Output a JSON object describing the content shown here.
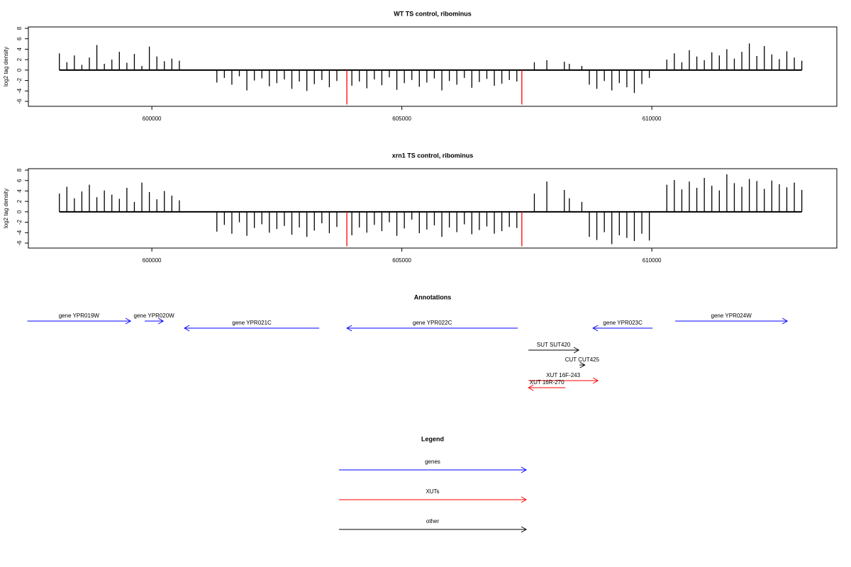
{
  "chart_data": [
    {
      "type": "bar",
      "title": "WT TS control, ribominus",
      "ylabel": "log2 tag density",
      "xlim": [
        597530,
        613700
      ],
      "xticks": [
        600000,
        605000,
        610000
      ],
      "ylim": [
        -6.95,
        8.27
      ],
      "yticks": [
        -6,
        -4,
        -2,
        0,
        2,
        4,
        6,
        8
      ],
      "series": [
        {
          "color": "#000000",
          "x": [
            598150,
            598300,
            598450,
            598600,
            598750,
            598900,
            599050,
            599200,
            599350,
            599500,
            599650,
            599800,
            599950,
            600100,
            600250,
            600400,
            600550,
            601300,
            601450,
            601600,
            601750,
            601900,
            602050,
            602200,
            602350,
            602500,
            602650,
            602800,
            602950,
            603100,
            603250,
            603400,
            603550,
            603700,
            604000,
            604150,
            604300,
            604450,
            604600,
            604750,
            604900,
            605050,
            605200,
            605350,
            605500,
            605650,
            605800,
            605950,
            606100,
            606250,
            606400,
            606550,
            606700,
            606850,
            607000,
            607150,
            607300,
            607650,
            607900,
            608250,
            608350,
            608600,
            608750,
            608900,
            609050,
            609200,
            609350,
            609500,
            609650,
            609800,
            609950,
            610300,
            610450,
            610600,
            610750,
            610900,
            611050,
            611200,
            611350,
            611500,
            611650,
            611800,
            611950,
            612100,
            612250,
            612400,
            612550,
            612700,
            612850,
            613000
          ],
          "values": [
            3.2,
            1.5,
            2.8,
            1.0,
            2.4,
            4.8,
            1.2,
            2.0,
            3.5,
            1.4,
            3.1,
            0.8,
            4.5,
            2.6,
            1.7,
            2.2,
            1.8,
            -2.4,
            -1.5,
            -2.8,
            -1.2,
            -3.9,
            -2.0,
            -1.6,
            -3.1,
            -2.5,
            -1.8,
            -3.6,
            -2.2,
            -4.0,
            -2.7,
            -1.9,
            -3.3,
            -2.1,
            -3.0,
            -2.2,
            -3.5,
            -1.8,
            -2.9,
            -1.4,
            -3.8,
            -2.5,
            -1.9,
            -3.2,
            -2.4,
            -1.6,
            -3.9,
            -2.1,
            -2.8,
            -1.5,
            -3.4,
            -2.3,
            -1.7,
            -3.0,
            -2.6,
            -1.9,
            -2.2,
            1.5,
            1.9,
            1.6,
            1.2,
            0.8,
            -2.8,
            -3.6,
            -2.1,
            -3.9,
            -2.5,
            -3.3,
            -4.4,
            -2.7,
            -1.5,
            2.0,
            3.2,
            1.5,
            3.8,
            2.6,
            1.9,
            3.4,
            2.8,
            4.0,
            2.2,
            3.5,
            5.1,
            2.7,
            4.6,
            3.0,
            2.1,
            3.6,
            2.4,
            1.8
          ]
        },
        {
          "color": "#ff0000",
          "x": [
            603900,
            607400
          ],
          "values": [
            -6.6,
            -6.6
          ]
        }
      ]
    },
    {
      "type": "bar",
      "title": "xrn1 TS control, ribominus",
      "ylabel": "log2 tag density",
      "xlim": [
        597530,
        613700
      ],
      "xticks": [
        600000,
        605000,
        610000
      ],
      "ylim": [
        -6.95,
        8.27
      ],
      "yticks": [
        -6,
        -4,
        -2,
        0,
        2,
        4,
        6,
        8
      ],
      "series": [
        {
          "color": "#000000",
          "x": [
            598150,
            598300,
            598450,
            598600,
            598750,
            598900,
            599050,
            599200,
            599350,
            599500,
            599650,
            599800,
            599950,
            600100,
            600250,
            600400,
            600550,
            601300,
            601450,
            601600,
            601750,
            601900,
            602050,
            602200,
            602350,
            602500,
            602650,
            602800,
            602950,
            603100,
            603250,
            603400,
            603550,
            603700,
            604000,
            604150,
            604300,
            604450,
            604600,
            604750,
            604900,
            605050,
            605200,
            605350,
            605500,
            605650,
            605800,
            605950,
            606100,
            606250,
            606400,
            606550,
            606700,
            606850,
            607000,
            607150,
            607300,
            607650,
            607900,
            608250,
            608350,
            608600,
            608750,
            608900,
            609050,
            609200,
            609350,
            609500,
            609650,
            609800,
            609950,
            610300,
            610450,
            610600,
            610750,
            610900,
            611050,
            611200,
            611350,
            611500,
            611650,
            611800,
            611950,
            612100,
            612250,
            612400,
            612550,
            612700,
            612850,
            613000
          ],
          "values": [
            3.5,
            4.8,
            2.6,
            3.9,
            5.2,
            2.8,
            4.1,
            3.3,
            2.5,
            4.6,
            1.9,
            5.6,
            3.8,
            2.4,
            4.0,
            3.1,
            2.2,
            -3.8,
            -2.5,
            -4.2,
            -2.0,
            -4.6,
            -3.1,
            -2.4,
            -4.0,
            -3.3,
            -2.7,
            -4.4,
            -3.0,
            -4.8,
            -3.6,
            -2.2,
            -4.1,
            -2.9,
            -4.5,
            -3.0,
            -4.0,
            -2.5,
            -3.7,
            -2.0,
            -4.6,
            -3.2,
            -1.5,
            -4.1,
            -3.4,
            -2.6,
            -4.8,
            -3.0,
            -3.9,
            -2.4,
            -4.3,
            -3.5,
            -2.8,
            -4.2,
            -3.7,
            -2.9,
            -3.1,
            3.5,
            5.8,
            4.2,
            2.6,
            1.9,
            -4.8,
            -5.4,
            -3.9,
            -6.2,
            -4.5,
            -5.0,
            -5.6,
            -4.2,
            -5.5,
            5.2,
            6.1,
            4.3,
            5.8,
            4.6,
            6.5,
            5.0,
            4.1,
            7.2,
            5.5,
            4.8,
            6.3,
            5.9,
            4.4,
            6.0,
            5.3,
            4.7,
            5.6,
            4.2
          ]
        },
        {
          "color": "#ff0000",
          "x": [
            603900,
            607400
          ],
          "values": [
            -6.6,
            -6.6
          ]
        }
      ]
    }
  ],
  "annotations": {
    "title": "Annotations",
    "items": [
      {
        "label": "gene YPR019W",
        "color": "#0000ff",
        "start": 597510,
        "end": 599574
      },
      {
        "label": "gene YPR020W",
        "color": "#0000ff",
        "start": 599858,
        "end": 600227
      },
      {
        "label": "gene YPR021C",
        "color": "#0000ff",
        "start": 603347,
        "end": 600652
      },
      {
        "label": "gene YPR022C",
        "color": "#0000ff",
        "start": 607319,
        "end": 603901
      },
      {
        "label": "gene YPR023C",
        "color": "#0000ff",
        "start": 610014,
        "end": 608823
      },
      {
        "label": "gene YPR024W",
        "color": "#0000ff",
        "start": 610468,
        "end": 612709
      },
      {
        "label": "SUT SUT420",
        "color": "#000000",
        "start": 607532,
        "end": 608539
      },
      {
        "label": "CUT CUT425",
        "color": "#000000",
        "start": 608553,
        "end": 608660
      },
      {
        "label": "XUT 16F-243",
        "color": "#ff0000",
        "start": 607532,
        "end": 608922
      },
      {
        "label": "XUT 16R-270",
        "color": "#ff0000",
        "start": 608270,
        "end": 607532
      }
    ]
  },
  "legend": {
    "title": "Legend",
    "entries": [
      {
        "label": "genes",
        "color": "#0000ff"
      },
      {
        "label": "XUTs",
        "color": "#ff0000"
      },
      {
        "label": "other",
        "color": "#000000"
      }
    ]
  }
}
